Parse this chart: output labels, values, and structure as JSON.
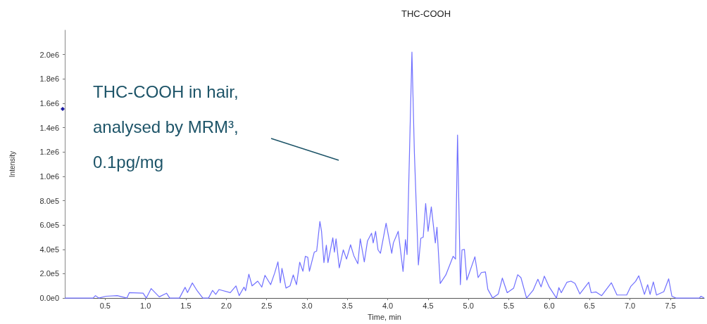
{
  "chart_data": {
    "type": "line",
    "title": "THC-COOH",
    "xlabel": "Time, min",
    "ylabel": "Intensity",
    "annotations": [
      "THC-COOH in hair,\nanalysed by MRM³,\n0.1pg/mg"
    ],
    "xlim": [
      0,
      7.92
    ],
    "xticks": [
      0.5,
      {
        "value": 1,
        "label": "1.0"
      },
      1.5,
      {
        "value": 2,
        "label": "2.0"
      },
      2.5,
      {
        "value": 3,
        "label": "3.0"
      },
      3.5,
      {
        "value": 4,
        "label": "4.0"
      },
      4.5,
      {
        "value": 5,
        "label": "5.0"
      },
      5.5,
      {
        "value": 6,
        "label": "6.0"
      },
      6.5,
      {
        "value": 7,
        "label": "7.0"
      },
      7.5
    ],
    "ylim": [
      0,
      2200000
    ],
    "yticks": [
      {
        "value": 0,
        "label": "0.0e0"
      },
      {
        "value": 200000,
        "label": "2.0e5"
      },
      {
        "value": 400000,
        "label": "4.0e5"
      },
      {
        "value": 600000,
        "label": "6.0e5"
      },
      {
        "value": 800000,
        "label": "8.0e5"
      },
      {
        "value": 1000000,
        "label": "1.0e6"
      },
      {
        "value": 1200000,
        "label": "1.2e6"
      },
      {
        "value": 1400000,
        "label": "1.4e6"
      },
      {
        "value": 1600000,
        "label": "1.6e6"
      },
      {
        "value": 1800000,
        "label": "1.8e6"
      },
      {
        "value": 2000000,
        "label": "2.0e6"
      }
    ],
    "grid": false,
    "marker": "none",
    "line_style": "solid",
    "series": [
      {
        "color": "#7070ff",
        "x": [
          0,
          0.35,
          0.38,
          0.42,
          0.51,
          0.65,
          0.77,
          0.8,
          0.97,
          1.01,
          1.07,
          1.17,
          1.26,
          1.3,
          1.42,
          1.49,
          1.52,
          1.58,
          1.64,
          1.71,
          1.78,
          1.83,
          1.87,
          1.91,
          2.05,
          2.12,
          2.16,
          2.22,
          2.24,
          2.28,
          2.32,
          2.39,
          2.44,
          2.48,
          2.55,
          2.6,
          2.64,
          2.67,
          2.69,
          2.74,
          2.79,
          2.83,
          2.87,
          2.91,
          2.95,
          2.98,
          3.01,
          3.03,
          3.09,
          3.12,
          3.16,
          3.18,
          3.21,
          3.24,
          3.26,
          3.32,
          3.34,
          3.36,
          3.4,
          3.45,
          3.49,
          3.54,
          3.58,
          3.63,
          3.66,
          3.71,
          3.75,
          3.8,
          3.82,
          3.85,
          3.88,
          3.91,
          3.98,
          4.05,
          4.07,
          4.13,
          4.19,
          4.22,
          4.24,
          4.27,
          4.3,
          4.33,
          4.38,
          4.41,
          4.44,
          4.47,
          4.5,
          4.54,
          4.59,
          4.61,
          4.65,
          4.72,
          4.81,
          4.84,
          4.865,
          4.9,
          4.92,
          4.95,
          4.98,
          5.08,
          5.12,
          5.16,
          5.21,
          5.24,
          5.3,
          5.37,
          5.42,
          5.48,
          5.56,
          5.61,
          5.65,
          5.72,
          5.8,
          5.86,
          5.9,
          5.94,
          6,
          6.09,
          6.12,
          6.15,
          6.22,
          6.27,
          6.32,
          6.38,
          6.49,
          6.52,
          6.58,
          6.65,
          6.77,
          6.84,
          6.96,
          7.01,
          7.07,
          7.11,
          7.18,
          7.22,
          7.25,
          7.29,
          7.33,
          7.42,
          7.48,
          7.52,
          7.57,
          7.86,
          7.88,
          7.92
        ],
        "values": [
          0,
          0,
          20000,
          0,
          15000,
          20000,
          0,
          45000,
          40000,
          0,
          78000,
          10000,
          40000,
          0,
          0,
          88000,
          45000,
          124000,
          60000,
          0,
          0,
          63000,
          30000,
          70000,
          45000,
          100000,
          20000,
          90000,
          60000,
          196000,
          100000,
          139000,
          90000,
          187000,
          110000,
          206000,
          297000,
          125000,
          244000,
          82000,
          100000,
          190000,
          110000,
          295000,
          220000,
          343000,
          335000,
          220000,
          377000,
          386000,
          629000,
          550000,
          291000,
          434000,
          291000,
          495000,
          377000,
          487000,
          248000,
          396000,
          320000,
          438000,
          349000,
          282000,
          487000,
          297000,
          470000,
          533000,
          453000,
          548000,
          396000,
          368000,
          615000,
          368000,
          453000,
          548000,
          219000,
          480000,
          358000,
          1200000,
          2020000,
          1200000,
          272000,
          491000,
          500000,
          777000,
          548000,
          749000,
          453000,
          582000,
          120000,
          190000,
          343000,
          320000,
          1339000,
          110000,
          396000,
          400000,
          148000,
          339000,
          168000,
          210000,
          215000,
          72000,
          0,
          34000,
          164000,
          44000,
          82000,
          192000,
          168000,
          0,
          63000,
          155000,
          92000,
          180000,
          92000,
          0,
          86000,
          44000,
          130000,
          139000,
          120000,
          34000,
          130000,
          44000,
          50000,
          20000,
          126000,
          25000,
          25000,
          95000,
          137000,
          183000,
          30000,
          110000,
          30000,
          133000,
          25000,
          53000,
          158000,
          15000,
          0,
          0,
          15000,
          0
        ]
      }
    ]
  }
}
